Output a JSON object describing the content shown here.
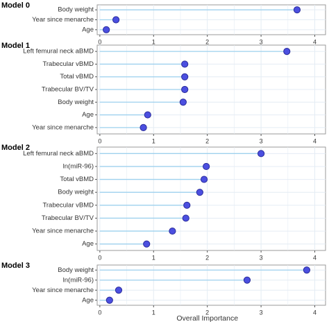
{
  "chart_data": {
    "type": "scatter",
    "style": "lollipop",
    "xlabel": "Overall Importance",
    "xlim": [
      -0.05,
      4.2
    ],
    "xticks": [
      0,
      1,
      2,
      3,
      4
    ],
    "grid": true,
    "colors": {
      "point": "#4b4fe0",
      "point_outline": "#2a2c9a",
      "stem": "#9ed1ee",
      "panel_border": "#9a9a9a",
      "grid": "#e4ecf4"
    },
    "panels": [
      {
        "title": "Model 0",
        "categories": [
          "Body weight",
          "Year since menarche",
          "Age"
        ],
        "values": [
          3.67,
          0.3,
          0.12
        ]
      },
      {
        "title": "Model 1",
        "categories": [
          "Left femural neck aBMD",
          "Trabecular vBMD",
          "Total vBMD",
          "Trabecular BV/TV",
          "Body weight",
          "Age",
          "Year since menarche"
        ],
        "values": [
          3.48,
          1.58,
          1.58,
          1.58,
          1.55,
          0.89,
          0.81
        ]
      },
      {
        "title": "Model 2",
        "categories": [
          "Left femural neck aBMD",
          "ln(miR-96)",
          "Total vBMD",
          "Body weight",
          "Trabecular vBMD",
          "Trabecular BV/TV",
          "Year since menarche",
          "Age"
        ],
        "values": [
          3.0,
          1.98,
          1.94,
          1.86,
          1.62,
          1.6,
          1.35,
          0.87
        ]
      },
      {
        "title": "Model 3",
        "categories": [
          "Body weight",
          "ln(miR-96)",
          "Year since menarche",
          "Age"
        ],
        "values": [
          3.85,
          2.74,
          0.35,
          0.18
        ]
      }
    ]
  }
}
